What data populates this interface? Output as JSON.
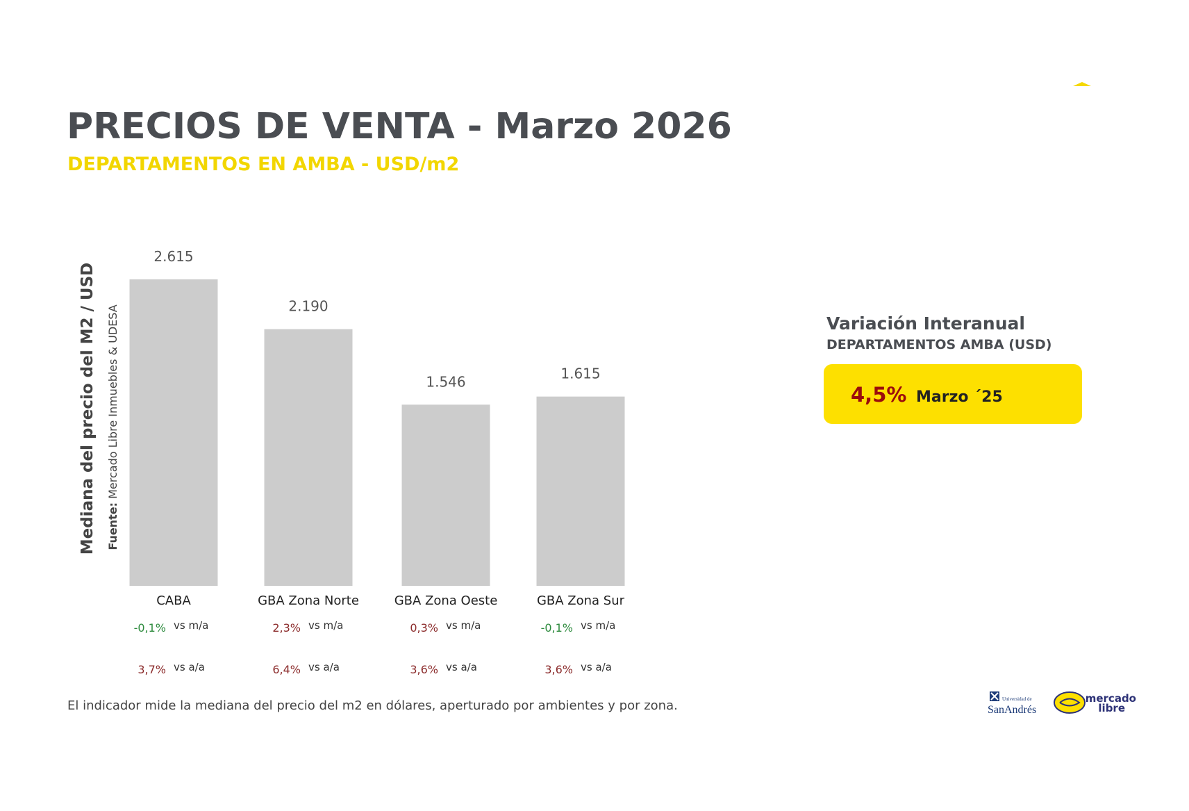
{
  "title": "PRECIOS DE VENTA -  Marzo 2026",
  "subtitle": "DEPARTAMENTOS EN AMBA - USD/m2",
  "chart_data": {
    "type": "bar",
    "y_label": "Mediana del precio del M2 / USD",
    "source_label": "Fuente:",
    "source": "Mercado Libre Inmuebles & UDESA",
    "categories": [
      "CABA",
      "GBA Zona Norte",
      "GBA Zona Oeste",
      "GBA Zona Sur"
    ],
    "values": [
      2615,
      2190,
      1546,
      1615
    ],
    "value_labels": [
      "2.615",
      "2.190",
      "1.546",
      "1.615"
    ],
    "color": "#cccccc",
    "variations": [
      {
        "name": "vs m/a",
        "values": [
          -0.1,
          2.3,
          0.3,
          -0.1
        ],
        "value_labels": [
          "-0,1%",
          "2,3%",
          "0,3%",
          "-0,1%"
        ]
      },
      {
        "name": "vs a/a",
        "values": [
          3.7,
          6.4,
          3.6,
          3.6
        ],
        "value_labels": [
          "3,7%",
          "6,4%",
          "3,6%",
          "3,6%"
        ]
      }
    ],
    "positive_color": "#8b2b2b",
    "negative_color": "#2e8b3e"
  },
  "side_box": {
    "title": "Variación Interanual",
    "subtitle": "DEPARTAMENTOS AMBA (USD)",
    "value": 4.5,
    "value_label": "4,5%",
    "period": "Marzo ´25"
  },
  "note": "El indicador mide la mediana del precio del m2 en dólares, aperturado por ambientes y por zona.",
  "logos": {
    "udesa_small": "Universidad de",
    "udesa": "SanAndrés",
    "ml_1": "mercado",
    "ml_2": "libre"
  }
}
